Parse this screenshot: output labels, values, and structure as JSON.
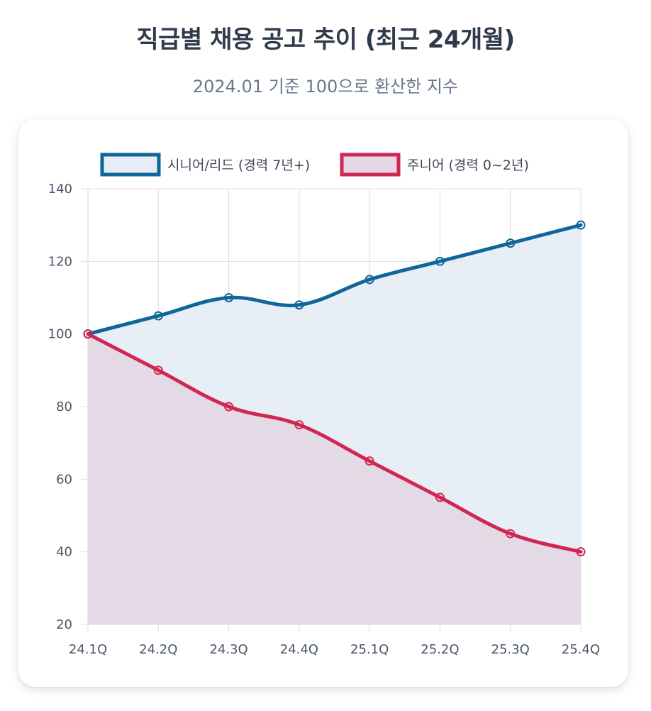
{
  "header": {
    "title": "직급별 채용 공고 추이 (최근 24개월)",
    "subtitle": "2024.01 기준 100으로 환산한 지수"
  },
  "colors": {
    "senior": "#0e6699",
    "senior_fill": "#e6edf5",
    "junior": "#cf2752",
    "junior_fill": "#e3d8e4",
    "grid": "#d9dde2",
    "axis": "#9aa3ad"
  },
  "chart_data": {
    "type": "line",
    "title": "직급별 채용 공고 추이 (최근 24개월)",
    "subtitle": "2024.01 기준 100으로 환산한 지수",
    "xlabel": "",
    "ylabel": "",
    "categories": [
      "24.1Q",
      "24.2Q",
      "24.3Q",
      "24.4Q",
      "25.1Q",
      "25.2Q",
      "25.3Q",
      "25.4Q"
    ],
    "ylim": [
      20,
      140
    ],
    "yticks": [
      20,
      40,
      60,
      80,
      100,
      120,
      140
    ],
    "grid": true,
    "legend_position": "top-center",
    "series": [
      {
        "name": "시니어/리드 (경력 7년+)",
        "key": "senior",
        "values": [
          100,
          105,
          110,
          108,
          115,
          120,
          125,
          130
        ],
        "filled": true
      },
      {
        "name": "주니어 (경력 0~2년)",
        "key": "junior",
        "values": [
          100,
          90,
          80,
          75,
          65,
          55,
          45,
          40
        ],
        "filled": true
      }
    ]
  }
}
